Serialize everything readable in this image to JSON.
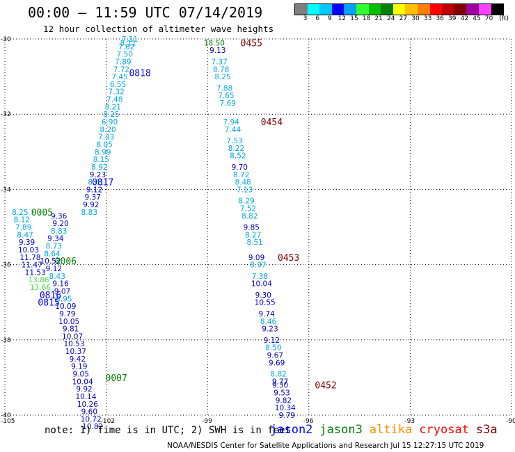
{
  "title": "00:00 – 11:59 UTC 07/14/2019",
  "subtitle": "12 hour collection of altimeter wave heights",
  "note": "note: 1) Time is in UTC; 2) SWH is in feet",
  "credit": "NOAA/NESDIS Center for Satellite Applications and Research   Jul 15 12:27:15 UTC 2019",
  "legend_scale": {
    "labels": [
      "3",
      "6",
      "9",
      "12",
      "15",
      "18",
      "21",
      "24",
      "27",
      "30",
      "33",
      "36",
      "39",
      "42",
      "45",
      "70",
      "(ft)"
    ],
    "colors": [
      "#7f7f7f",
      "#00ffff",
      "#00c8ff",
      "#0000ff",
      "#00a0ff",
      "#30ff30",
      "#00c000",
      "#008000",
      "#ffff00",
      "#ffc000",
      "#ff8000",
      "#ff0000",
      "#c00000",
      "#800000",
      "#a000a0",
      "#ff40ff",
      "#000000"
    ]
  },
  "satellites": [
    {
      "name": "jason2",
      "color": "#0000ff"
    },
    {
      "name": "jason3",
      "color": "#008000"
    },
    {
      "name": "altika",
      "color": "#ff9000"
    },
    {
      "name": "cryosat",
      "color": "#ff0000"
    },
    {
      "name": "s3a",
      "color": "#800000"
    }
  ],
  "map": {
    "lat_labels": [
      "-30",
      "-32",
      "-34",
      "-36",
      "-38",
      "-40"
    ],
    "lon_labels": [
      "-105",
      "-102",
      "-99",
      "-96",
      "-93",
      "-90"
    ],
    "lat_range": [
      -40,
      -30
    ],
    "lon_range": [
      -105,
      -90
    ]
  },
  "tracks": [
    {
      "name": "track-a",
      "points": [
        {
          "lat": -30.0,
          "lon": -101.3,
          "swh": "7.11"
        },
        {
          "lat": -30.1,
          "lon": -101.35,
          "swh": "8.11"
        },
        {
          "lat": -30.2,
          "lon": -101.4,
          "swh": "7.62"
        },
        {
          "lat": -30.4,
          "lon": -101.45,
          "swh": "7.50"
        },
        {
          "lat": -30.6,
          "lon": -101.5,
          "swh": "7.89"
        },
        {
          "lat": -30.8,
          "lon": -101.55,
          "swh": "7.72"
        },
        {
          "lat": -31.0,
          "lon": -101.6,
          "swh": "7.45"
        },
        {
          "lat": -31.2,
          "lon": -101.65,
          "swh": "6.55"
        },
        {
          "lat": -31.4,
          "lon": -101.7,
          "swh": "7.32"
        },
        {
          "lat": -31.6,
          "lon": -101.75,
          "swh": "7.48"
        },
        {
          "lat": -31.8,
          "lon": -101.8,
          "swh": "8.21"
        },
        {
          "lat": -32.0,
          "lon": -101.85,
          "swh": "8.25"
        },
        {
          "lat": -32.2,
          "lon": -101.9,
          "swh": "6.90"
        },
        {
          "lat": -32.4,
          "lon": -101.95,
          "swh": "8.20"
        },
        {
          "lat": -32.6,
          "lon": -102.0,
          "swh": "7.43"
        },
        {
          "lat": -32.8,
          "lon": -102.05,
          "swh": "8.05"
        },
        {
          "lat": -33.0,
          "lon": -102.1,
          "swh": "8.99"
        },
        {
          "lat": -33.2,
          "lon": -102.15,
          "swh": "8.15"
        },
        {
          "lat": -33.4,
          "lon": -102.2,
          "swh": "8.92"
        },
        {
          "lat": -33.6,
          "lon": -102.25,
          "swh": "9.23"
        },
        {
          "lat": -33.8,
          "lon": -102.3,
          "swh": "8.61"
        },
        {
          "lat": -34.0,
          "lon": -102.35,
          "swh": "9.12"
        },
        {
          "lat": -34.2,
          "lon": -102.4,
          "swh": "9.37"
        },
        {
          "lat": -34.4,
          "lon": -102.45,
          "swh": "9.92"
        },
        {
          "lat": -34.6,
          "lon": -102.5,
          "swh": "8.83"
        }
      ]
    },
    {
      "name": "track-b",
      "points": [
        {
          "lat": -30.1,
          "lon": -98.8,
          "swh": "18.50"
        },
        {
          "lat": -30.3,
          "lon": -98.7,
          "swh": "9.13"
        },
        {
          "lat": -30.6,
          "lon": -98.65,
          "swh": "7.37"
        },
        {
          "lat": -30.8,
          "lon": -98.6,
          "swh": "8.78"
        },
        {
          "lat": -31.0,
          "lon": -98.55,
          "swh": "8.25"
        },
        {
          "lat": -31.3,
          "lon": -98.5,
          "swh": "7.88"
        },
        {
          "lat": -31.5,
          "lon": -98.45,
          "swh": "7.65"
        },
        {
          "lat": -31.7,
          "lon": -98.4,
          "swh": "7.69"
        },
        {
          "lat": -32.2,
          "lon": -98.3,
          "swh": "7.94"
        },
        {
          "lat": -32.4,
          "lon": -98.25,
          "swh": "7.44"
        },
        {
          "lat": -32.7,
          "lon": -98.2,
          "swh": "7.53"
        },
        {
          "lat": -32.9,
          "lon": -98.15,
          "swh": "8.22"
        },
        {
          "lat": -33.1,
          "lon": -98.1,
          "swh": "8.52"
        },
        {
          "lat": -33.4,
          "lon": -98.05,
          "swh": "9.70"
        },
        {
          "lat": -33.6,
          "lon": -98.0,
          "swh": "8.72"
        },
        {
          "lat": -33.8,
          "lon": -97.95,
          "swh": "8.48"
        },
        {
          "lat": -34.0,
          "lon": -97.9,
          "swh": "7.13"
        },
        {
          "lat": -34.3,
          "lon": -97.85,
          "swh": "8.29"
        },
        {
          "lat": -34.5,
          "lon": -97.8,
          "swh": "7.52"
        },
        {
          "lat": -34.7,
          "lon": -97.75,
          "swh": "8.82"
        },
        {
          "lat": -35.0,
          "lon": -97.7,
          "swh": "9.85"
        },
        {
          "lat": -35.2,
          "lon": -97.65,
          "swh": "8.27"
        },
        {
          "lat": -35.4,
          "lon": -97.6,
          "swh": "8.51"
        },
        {
          "lat": -35.8,
          "lon": -97.55,
          "swh": "9.09"
        },
        {
          "lat": -36.0,
          "lon": -97.5,
          "swh": "8.97"
        },
        {
          "lat": -36.3,
          "lon": -97.45,
          "swh": "7.38"
        },
        {
          "lat": -36.5,
          "lon": -97.4,
          "swh": "10.04"
        },
        {
          "lat": -36.8,
          "lon": -97.35,
          "swh": "9.30"
        },
        {
          "lat": -37.0,
          "lon": -97.3,
          "swh": "10.55"
        },
        {
          "lat": -37.3,
          "lon": -97.25,
          "swh": "9.74"
        },
        {
          "lat": -37.5,
          "lon": -97.2,
          "swh": "8.46"
        },
        {
          "lat": -37.7,
          "lon": -97.15,
          "swh": "9.23"
        },
        {
          "lat": -38.0,
          "lon": -97.1,
          "swh": "9.12"
        },
        {
          "lat": -38.2,
          "lon": -97.05,
          "swh": "8.50"
        },
        {
          "lat": -38.4,
          "lon": -97.0,
          "swh": "9.67"
        },
        {
          "lat": -38.6,
          "lon": -96.95,
          "swh": "9.69"
        },
        {
          "lat": -38.9,
          "lon": -96.9,
          "swh": "8.82"
        },
        {
          "lat": -39.1,
          "lon": -96.85,
          "swh": "9.77"
        },
        {
          "lat": -39.2,
          "lon": -96.85,
          "swh": "9.30"
        },
        {
          "lat": -39.4,
          "lon": -96.8,
          "swh": "9.53"
        },
        {
          "lat": -39.6,
          "lon": -96.75,
          "swh": "9.82"
        },
        {
          "lat": -39.8,
          "lon": -96.7,
          "swh": "10.34"
        },
        {
          "lat": -40.0,
          "lon": -96.65,
          "swh": "9.79"
        }
      ]
    },
    {
      "name": "track-c",
      "points": [
        {
          "lat": -34.6,
          "lon": -104.55,
          "swh": "8.25"
        },
        {
          "lat": -34.8,
          "lon": -104.5,
          "swh": "8.12"
        },
        {
          "lat": -35.0,
          "lon": -104.45,
          "swh": "7.89"
        },
        {
          "lat": -35.2,
          "lon": -104.4,
          "swh": "8.47"
        },
        {
          "lat": -35.4,
          "lon": -104.35,
          "swh": "9.39"
        },
        {
          "lat": -35.6,
          "lon": -104.3,
          "swh": "10.03"
        },
        {
          "lat": -35.8,
          "lon": -104.25,
          "swh": "11.78"
        },
        {
          "lat": -36.0,
          "lon": -104.2,
          "swh": "11.47"
        },
        {
          "lat": -36.2,
          "lon": -104.1,
          "swh": "11.53"
        },
        {
          "lat": -36.4,
          "lon": -104.0,
          "swh": "13.86"
        },
        {
          "lat": -36.6,
          "lon": -103.95,
          "swh": "13.66"
        }
      ]
    },
    {
      "name": "track-d",
      "points": [
        {
          "lat": -34.7,
          "lon": -103.4,
          "swh": "9.36"
        },
        {
          "lat": -34.9,
          "lon": -103.35,
          "swh": "9.20"
        },
        {
          "lat": -35.1,
          "lon": -103.4,
          "swh": "8.83"
        },
        {
          "lat": -35.3,
          "lon": -103.5,
          "swh": "9.34"
        },
        {
          "lat": -35.5,
          "lon": -103.55,
          "swh": "8.73"
        },
        {
          "lat": -35.7,
          "lon": -103.6,
          "swh": "8.64"
        },
        {
          "lat": -35.9,
          "lon": -103.65,
          "swh": "10.52"
        },
        {
          "lat": -36.1,
          "lon": -103.55,
          "swh": "9.12"
        },
        {
          "lat": -36.3,
          "lon": -103.45,
          "swh": "8.43"
        },
        {
          "lat": -36.5,
          "lon": -103.35,
          "swh": "9.16"
        },
        {
          "lat": -36.7,
          "lon": -103.3,
          "swh": "9.07"
        },
        {
          "lat": -36.9,
          "lon": -103.25,
          "swh": "8.95"
        },
        {
          "lat": -37.1,
          "lon": -103.2,
          "swh": "10.09"
        },
        {
          "lat": -37.3,
          "lon": -103.15,
          "swh": "9.79"
        },
        {
          "lat": -37.5,
          "lon": -103.1,
          "swh": "10.05"
        },
        {
          "lat": -37.7,
          "lon": -103.05,
          "swh": "9.81"
        },
        {
          "lat": -37.9,
          "lon": -103.0,
          "swh": "10.07"
        },
        {
          "lat": -38.1,
          "lon": -102.95,
          "swh": "10.53"
        },
        {
          "lat": -38.3,
          "lon": -102.9,
          "swh": "10.37"
        },
        {
          "lat": -38.5,
          "lon": -102.85,
          "swh": "9.42"
        },
        {
          "lat": -38.7,
          "lon": -102.8,
          "swh": "9.19"
        },
        {
          "lat": -38.9,
          "lon": -102.75,
          "swh": "9.05"
        },
        {
          "lat": -39.1,
          "lon": -102.7,
          "swh": "10.04"
        },
        {
          "lat": -39.3,
          "lon": -102.65,
          "swh": "9.92"
        },
        {
          "lat": -39.5,
          "lon": -102.6,
          "swh": "10.14"
        },
        {
          "lat": -39.7,
          "lon": -102.55,
          "swh": "10.26"
        },
        {
          "lat": -39.9,
          "lon": -102.5,
          "swh": "9.60"
        },
        {
          "lat": -40.1,
          "lon": -102.45,
          "swh": "10.72"
        },
        {
          "lat": -40.3,
          "lon": -102.4,
          "swh": "10.82"
        }
      ]
    }
  ],
  "time_labels": [
    {
      "text": "0818",
      "lat": -30.9,
      "lon": -101.0,
      "color": "#0000ff"
    },
    {
      "text": "0817",
      "lat": -33.8,
      "lon": -102.1,
      "color": "#0000ff"
    },
    {
      "text": "0816",
      "lat": -36.8,
      "lon": -103.65,
      "color": "#0000ff"
    },
    {
      "text": "0815",
      "lat": -37.0,
      "lon": -103.7,
      "color": "#0000ff"
    },
    {
      "text": "0005",
      "lat": -34.6,
      "lon": -103.9,
      "color": "#008000"
    },
    {
      "text": "0006",
      "lat": -35.9,
      "lon": -103.2,
      "color": "#008000"
    },
    {
      "text": "0007",
      "lat": -39.0,
      "lon": -101.7,
      "color": "#008000"
    },
    {
      "text": "0455",
      "lat": -30.1,
      "lon": -97.7,
      "color": "#800000"
    },
    {
      "text": "0454",
      "lat": -32.2,
      "lon": -97.1,
      "color": "#800000"
    },
    {
      "text": "0453",
      "lat": -35.8,
      "lon": -96.6,
      "color": "#800000"
    },
    {
      "text": "0452",
      "lat": -39.2,
      "lon": -95.5,
      "color": "#800000"
    }
  ]
}
